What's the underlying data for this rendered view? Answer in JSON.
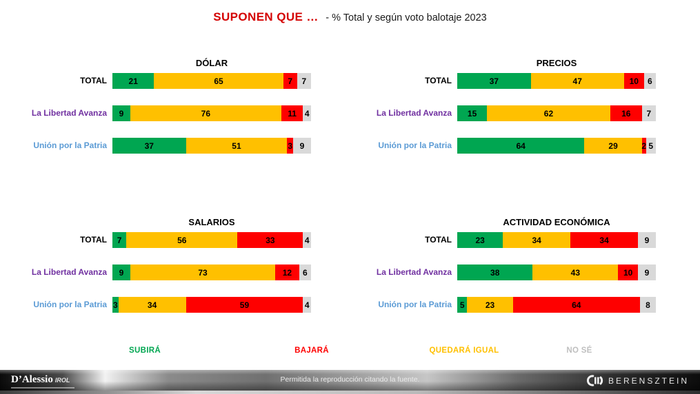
{
  "title": {
    "emphasis": "SUPONEN QUE …",
    "rest": "- % Total y según voto balotaje 2023"
  },
  "colors": {
    "subira": "#00a651",
    "quedara_igual": "#ffc000",
    "bajara": "#fe0000",
    "no_se": "#d9d9d9",
    "title_red": "#d40000",
    "legend_no_se_text": "#bfbfbf"
  },
  "row_label_colors": [
    "#000000",
    "#7030a0",
    "#5b9bd5"
  ],
  "segment_keys": [
    "subira",
    "quedara_igual",
    "bajara",
    "no_se"
  ],
  "legend": [
    {
      "label": "SUBIRÁ",
      "color": "#00a651"
    },
    {
      "label": "BAJARÁ",
      "color": "#fe0000"
    },
    {
      "label": "QUEDARÁ IGUAL",
      "color": "#ffc000"
    },
    {
      "label": "NO SÉ",
      "color": "#bfbfbf"
    }
  ],
  "chart_data": [
    {
      "type": "bar",
      "orientation": "horizontal_stacked",
      "title": "DÓLAR",
      "xlim": [
        0,
        100
      ],
      "legend_labels": [
        "SUBIRÁ",
        "QUEDARÁ IGUAL",
        "BAJARÁ",
        "NO SÉ"
      ],
      "rows": [
        {
          "label": "TOTAL",
          "values": {
            "subira": 21,
            "quedara_igual": 65,
            "bajara": 7,
            "no_se": 7
          }
        },
        {
          "label": "La Libertad Avanza",
          "values": {
            "subira": 9,
            "quedara_igual": 76,
            "bajara": 11,
            "no_se": 4
          }
        },
        {
          "label": "Unión por la Patria",
          "values": {
            "subira": 37,
            "quedara_igual": 51,
            "bajara": 3,
            "no_se": 9
          }
        }
      ]
    },
    {
      "type": "bar",
      "orientation": "horizontal_stacked",
      "title": "PRECIOS",
      "xlim": [
        0,
        100
      ],
      "legend_labels": [
        "SUBIRÁ",
        "QUEDARÁ IGUAL",
        "BAJARÁ",
        "NO SÉ"
      ],
      "rows": [
        {
          "label": "TOTAL",
          "values": {
            "subira": 37,
            "quedara_igual": 47,
            "bajara": 10,
            "no_se": 6
          }
        },
        {
          "label": "La Libertad Avanza",
          "values": {
            "subira": 15,
            "quedara_igual": 62,
            "bajara": 16,
            "no_se": 7
          }
        },
        {
          "label": "Unión por la Patria",
          "values": {
            "subira": 64,
            "quedara_igual": 29,
            "bajara": 2,
            "no_se": 5
          }
        }
      ]
    },
    {
      "type": "bar",
      "orientation": "horizontal_stacked",
      "title": "SALARIOS",
      "xlim": [
        0,
        100
      ],
      "legend_labels": [
        "SUBIRÁ",
        "QUEDARÁ IGUAL",
        "BAJARÁ",
        "NO SÉ"
      ],
      "rows": [
        {
          "label": "TOTAL",
          "values": {
            "subira": 7,
            "quedara_igual": 56,
            "bajara": 33,
            "no_se": 4
          }
        },
        {
          "label": "La Libertad Avanza",
          "values": {
            "subira": 9,
            "quedara_igual": 73,
            "bajara": 12,
            "no_se": 6
          }
        },
        {
          "label": "Unión por la Patria",
          "values": {
            "subira": 3,
            "quedara_igual": 34,
            "bajara": 59,
            "no_se": 4
          }
        }
      ]
    },
    {
      "type": "bar",
      "orientation": "horizontal_stacked",
      "title": "ACTIVIDAD ECONÓMICA",
      "xlim": [
        0,
        100
      ],
      "legend_labels": [
        "SUBIRÁ",
        "QUEDARÁ IGUAL",
        "BAJARÁ",
        "NO SÉ"
      ],
      "rows": [
        {
          "label": "TOTAL",
          "values": {
            "subira": 23,
            "quedara_igual": 34,
            "bajara": 34,
            "no_se": 9
          }
        },
        {
          "label": "La Libertad Avanza",
          "values": {
            "subira": 38,
            "quedara_igual": 43,
            "bajara": 10,
            "no_se": 9
          }
        },
        {
          "label": "Unión por la Patria",
          "values": {
            "subira": 5,
            "quedara_igual": 23,
            "bajara": 64,
            "no_se": 8
          }
        }
      ]
    }
  ],
  "footer": {
    "center_text": "Permitida la reproducción citando la fuente.",
    "logo_left_main": "D’Alessio",
    "logo_left_sub": "IROL",
    "logo_right": "BERENSZTEIN"
  }
}
